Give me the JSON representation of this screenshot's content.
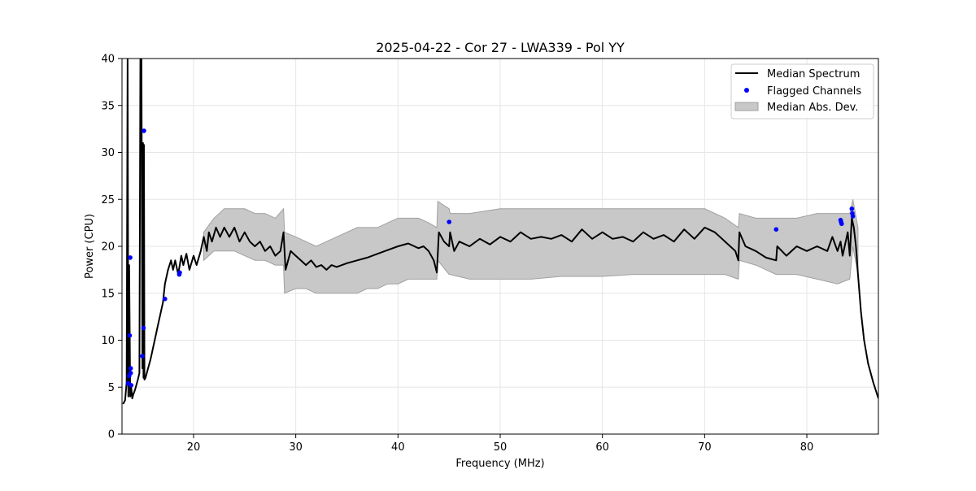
{
  "chart_data": {
    "type": "line",
    "title": "2025-04-22 - Cor 27 - LWA339 - Pol YY",
    "xlabel": "Frequency (MHz)",
    "ylabel": "Power (CPU)",
    "xlim": [
      13.0,
      87.0
    ],
    "ylim": [
      0,
      40
    ],
    "xticks": [
      20,
      30,
      40,
      50,
      60,
      70,
      80
    ],
    "yticks": [
      0,
      5,
      10,
      15,
      20,
      25,
      30,
      35,
      40
    ],
    "grid": true,
    "legend_position": "top-right",
    "colors": {
      "median": "#000000",
      "flagged": "#0000ff",
      "mad_fill": "#c8c8c8",
      "mad_edge": "#a0a0a0",
      "grid": "#e6e6e6"
    },
    "series": [
      {
        "name": "Median Spectrum",
        "kind": "line",
        "x": [
          13.1,
          13.3,
          13.45,
          13.55,
          13.62,
          13.7,
          13.8,
          13.9,
          14.0,
          14.1,
          14.2,
          14.3,
          14.4,
          14.55,
          14.7,
          14.8,
          14.9,
          15.0,
          15.05,
          15.1,
          15.15,
          15.2,
          15.3,
          15.5,
          15.8,
          16.2,
          16.6,
          17.0,
          17.2,
          17.5,
          17.8,
          18.0,
          18.2,
          18.5,
          18.8,
          19.0,
          19.3,
          19.6,
          20.0,
          20.3,
          20.7,
          21.0,
          21.3,
          21.5,
          21.8,
          22.2,
          22.6,
          23.0,
          23.5,
          24.0,
          24.5,
          25.0,
          25.5,
          26.0,
          26.5,
          27.0,
          27.5,
          28.0,
          28.5,
          28.8,
          29.0,
          29.5,
          30.0,
          30.5,
          31.0,
          31.5,
          32.0,
          32.5,
          33.0,
          33.5,
          34.0,
          35.0,
          36.0,
          37.0,
          38.0,
          39.0,
          40.0,
          41.0,
          42.0,
          42.5,
          43.0,
          43.5,
          43.8,
          44.0,
          44.5,
          45.0,
          45.1,
          45.5,
          46.0,
          47.0,
          48.0,
          49.0,
          50.0,
          51.0,
          52.0,
          53.0,
          54.0,
          55.0,
          56.0,
          57.0,
          58.0,
          59.0,
          60.0,
          61.0,
          62.0,
          63.0,
          64.0,
          65.0,
          66.0,
          67.0,
          68.0,
          69.0,
          70.0,
          71.0,
          72.0,
          73.0,
          73.3,
          73.4,
          74.0,
          75.0,
          76.0,
          77.0,
          77.1,
          78.0,
          79.0,
          80.0,
          81.0,
          82.0,
          82.5,
          83.0,
          83.3,
          83.5,
          84.0,
          84.2,
          84.4,
          84.6,
          84.8,
          85.0,
          85.3,
          85.6,
          86.0,
          86.5,
          87.0
        ],
        "y": [
          3.2,
          3.6,
          5.5,
          40.0,
          4.0,
          18.0,
          4.0,
          5.0,
          3.8,
          4.2,
          4.5,
          4.8,
          5.2,
          5.8,
          6.5,
          40.0,
          40.0,
          7.0,
          31.0,
          6.0,
          30.8,
          5.8,
          6.0,
          6.8,
          8.0,
          10.0,
          12.0,
          14.0,
          16.0,
          17.5,
          18.5,
          17.5,
          18.5,
          17.0,
          19.0,
          18.0,
          19.2,
          17.5,
          19.0,
          18.0,
          19.5,
          21.0,
          19.5,
          21.5,
          20.5,
          22.0,
          21.0,
          22.0,
          21.0,
          22.0,
          20.5,
          21.5,
          20.5,
          20.0,
          20.5,
          19.5,
          20.0,
          19.0,
          19.5,
          21.5,
          17.5,
          19.5,
          19.0,
          18.5,
          18.0,
          18.5,
          17.8,
          18.0,
          17.5,
          18.0,
          17.8,
          18.2,
          18.5,
          18.8,
          19.2,
          19.6,
          20.0,
          20.3,
          19.8,
          20.0,
          19.5,
          18.5,
          17.2,
          21.5,
          20.5,
          20.0,
          21.5,
          19.5,
          20.5,
          20.0,
          20.8,
          20.2,
          21.0,
          20.5,
          21.5,
          20.8,
          21.0,
          20.8,
          21.2,
          20.5,
          21.8,
          20.8,
          21.5,
          20.8,
          21.0,
          20.5,
          21.5,
          20.8,
          21.2,
          20.5,
          21.8,
          20.8,
          22.0,
          21.5,
          20.5,
          19.5,
          18.5,
          21.5,
          20.0,
          19.5,
          18.8,
          18.5,
          20.0,
          19.0,
          20.0,
          19.5,
          20.0,
          19.5,
          21.0,
          19.5,
          20.5,
          19.0,
          21.5,
          19.0,
          23.0,
          22.0,
          20.0,
          17.0,
          13.0,
          10.0,
          7.5,
          5.5,
          3.8
        ]
      },
      {
        "name": "Flagged Channels",
        "kind": "scatter",
        "x": [
          13.6,
          13.7,
          13.75,
          13.8,
          13.85,
          13.85,
          13.9,
          15.0,
          15.1,
          15.15,
          17.2,
          18.6,
          18.65,
          45.0,
          77.0,
          83.3,
          83.35,
          83.4,
          84.4,
          84.45,
          84.5
        ],
        "y": [
          5.4,
          6.2,
          10.5,
          18.8,
          7.0,
          6.5,
          5.2,
          8.3,
          11.3,
          32.3,
          14.4,
          17.0,
          17.2,
          22.6,
          21.8,
          22.8,
          22.6,
          22.4,
          24.0,
          23.5,
          23.2
        ]
      },
      {
        "name": "Median Abs. Dev.",
        "kind": "band",
        "x": [
          21.0,
          22.0,
          23.0,
          24.0,
          25.0,
          26.0,
          27.0,
          28.0,
          28.8,
          28.9,
          30.0,
          31.0,
          32.0,
          33.0,
          34.0,
          35.0,
          36.0,
          37.0,
          38.0,
          39.0,
          40.0,
          41.0,
          42.0,
          43.0,
          43.8,
          43.9,
          45.0,
          45.1,
          47.0,
          50.0,
          53.0,
          56.0,
          60.0,
          63.0,
          66.0,
          70.0,
          72.0,
          73.3,
          73.4,
          75.0,
          77.0,
          79.0,
          81.0,
          83.0,
          84.2,
          84.5,
          85.0
        ],
        "upper": [
          21.5,
          23.0,
          24.0,
          24.0,
          24.0,
          23.5,
          23.5,
          23.0,
          24.0,
          21.5,
          21.0,
          20.5,
          20.0,
          20.5,
          21.0,
          21.5,
          22.0,
          22.0,
          22.0,
          22.5,
          23.0,
          23.0,
          23.0,
          22.5,
          22.0,
          24.8,
          24.0,
          23.5,
          23.5,
          24.0,
          24.0,
          24.0,
          24.0,
          24.0,
          24.0,
          24.0,
          23.0,
          22.0,
          23.5,
          23.0,
          23.0,
          23.0,
          23.5,
          23.5,
          23.5,
          25.0,
          22.0
        ],
        "lower": [
          18.5,
          19.5,
          19.5,
          19.5,
          19.0,
          18.5,
          18.5,
          18.0,
          18.0,
          15.0,
          15.5,
          15.5,
          15.0,
          15.0,
          15.0,
          15.0,
          15.0,
          15.5,
          15.5,
          16.0,
          16.0,
          16.5,
          16.5,
          16.5,
          16.5,
          18.5,
          17.0,
          17.0,
          16.5,
          16.5,
          16.5,
          16.8,
          16.8,
          17.0,
          17.0,
          17.0,
          17.0,
          16.5,
          18.5,
          18.0,
          17.0,
          17.0,
          16.5,
          16.0,
          16.5,
          20.0,
          17.0
        ]
      }
    ]
  }
}
